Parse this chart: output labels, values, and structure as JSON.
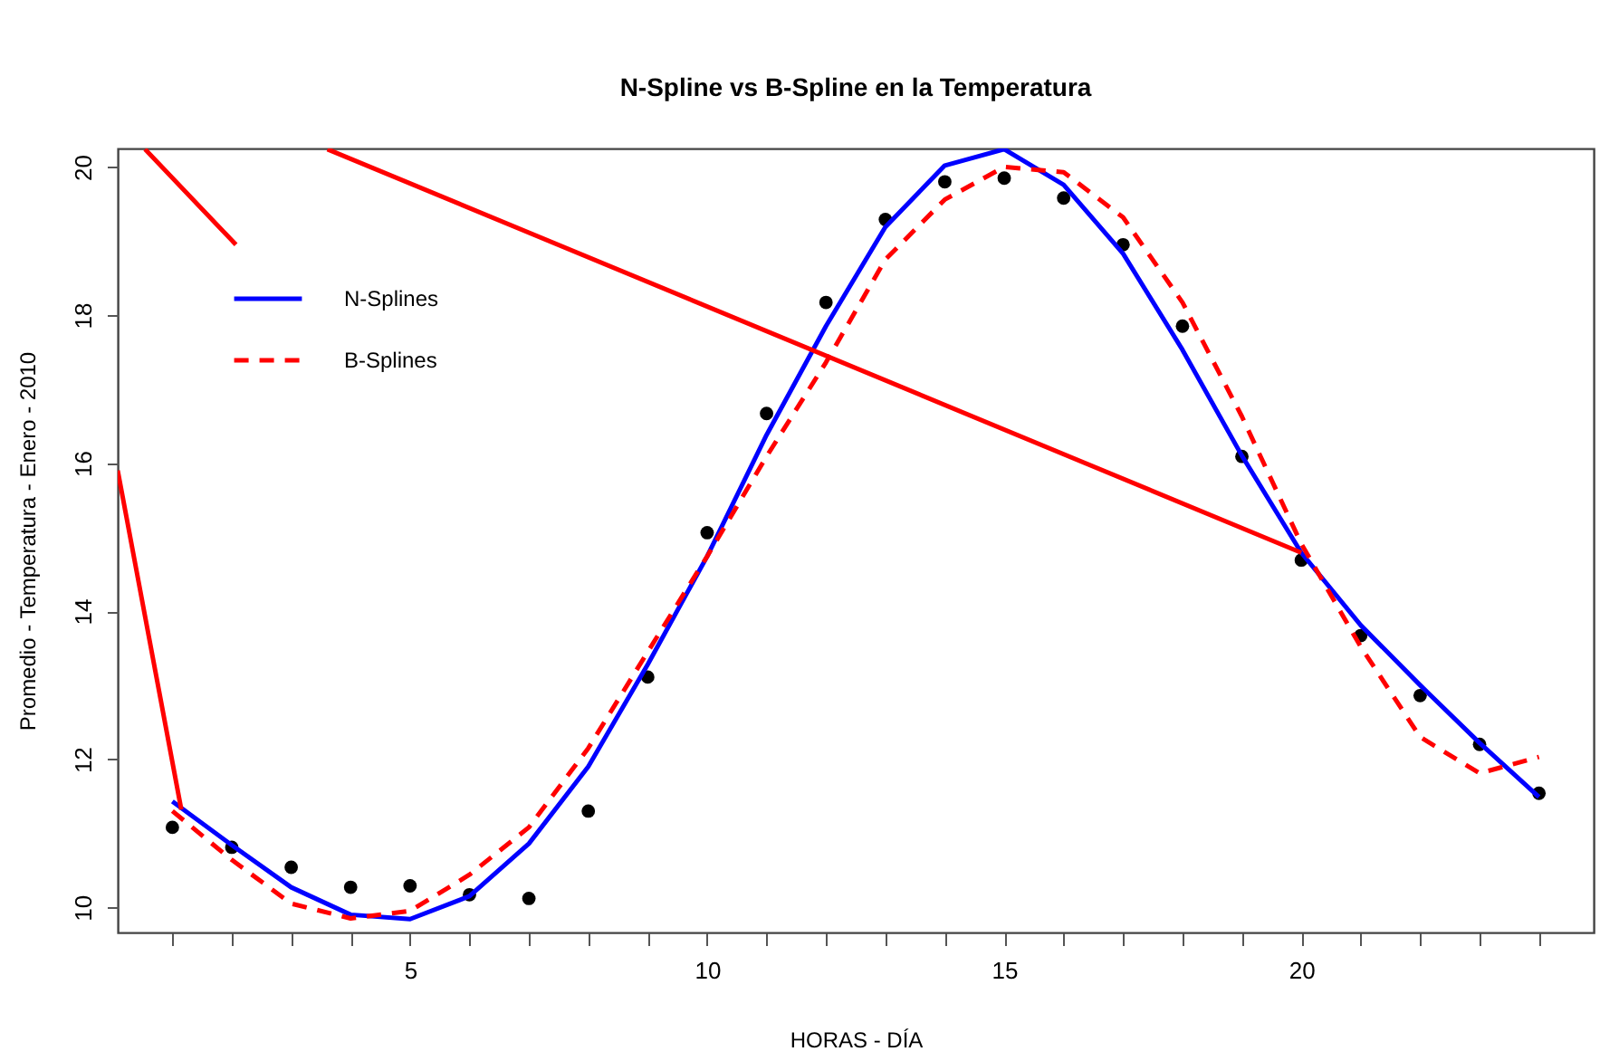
{
  "chart_data": {
    "type": "line",
    "title": "N-Spline vs B-Spline en la Temperatura",
    "xlabel": "HORAS - DÍA",
    "ylabel": "Promedio - Temperatura - Enero - 2010",
    "x": [
      1,
      2,
      3,
      4,
      5,
      6,
      7,
      8,
      9,
      10,
      11,
      12,
      13,
      14,
      15,
      16,
      17,
      18,
      19,
      20,
      21,
      22,
      23,
      24
    ],
    "xlim": [
      0.08,
      24.92
    ],
    "xticks": [
      {
        "value": 1,
        "label": null
      },
      {
        "value": 2,
        "label": null
      },
      {
        "value": 3,
        "label": null
      },
      {
        "value": 4,
        "label": null
      },
      5,
      {
        "value": 6,
        "label": null
      },
      {
        "value": 7,
        "label": null
      },
      {
        "value": 8,
        "label": null
      },
      {
        "value": 9,
        "label": null
      },
      10,
      {
        "value": 11,
        "label": null
      },
      {
        "value": 12,
        "label": null
      },
      {
        "value": 13,
        "label": null
      },
      {
        "value": 14,
        "label": null
      },
      15,
      {
        "value": 16,
        "label": null
      },
      {
        "value": 17,
        "label": null
      },
      {
        "value": 18,
        "label": null
      },
      {
        "value": 19,
        "label": null
      },
      20,
      {
        "value": 21,
        "label": null
      },
      {
        "value": 22,
        "label": null
      },
      {
        "value": 23,
        "label": null
      },
      {
        "value": 24,
        "label": null
      }
    ],
    "ylim": [
      9.66,
      20.25
    ],
    "yticks": [
      10,
      12,
      14,
      16,
      18,
      20
    ],
    "grid": false,
    "legend": "top left",
    "series": [
      {
        "type": "scatter",
        "marker": "circle",
        "color": "#000000",
        "values": [
          11.08,
          10.81,
          10.54,
          10.27,
          10.29,
          10.17,
          10.12,
          11.3,
          13.11,
          15.06,
          16.67,
          18.17,
          19.29,
          19.8,
          19.85,
          19.58,
          18.95,
          17.85,
          16.09,
          14.69,
          13.67,
          12.86,
          12.2,
          11.54
        ]
      },
      {
        "name": "N-Splines",
        "color": "#0000ff",
        "line_style": "solid",
        "values": [
          11.43,
          10.84,
          10.27,
          9.9,
          9.84,
          10.15,
          10.86,
          11.9,
          13.28,
          14.74,
          16.38,
          17.85,
          19.19,
          20.02,
          20.24,
          19.76,
          18.83,
          17.53,
          16.1,
          14.79,
          13.81,
          13.0,
          12.22,
          11.49
        ]
      },
      {
        "name": "B-Splines",
        "color": "#ff0000",
        "line_style": "dashed",
        "values": [
          11.3,
          10.64,
          10.05,
          9.85,
          9.95,
          10.44,
          11.08,
          12.15,
          13.45,
          14.74,
          16.09,
          17.36,
          18.75,
          19.56,
          20.0,
          19.93,
          19.32,
          18.17,
          16.63,
          14.91,
          13.52,
          12.3,
          11.81,
          12.03
        ]
      },
      {
        "color": "#ff0000",
        "line_style": "solid",
        "x": [
          0.08,
          1.15,
          null,
          0.54,
          2.07,
          null,
          3.61,
          20
        ],
        "values": [
          15.9,
          11.32,
          null,
          20.24,
          18.95,
          null,
          20.24,
          14.79
        ]
      }
    ]
  }
}
